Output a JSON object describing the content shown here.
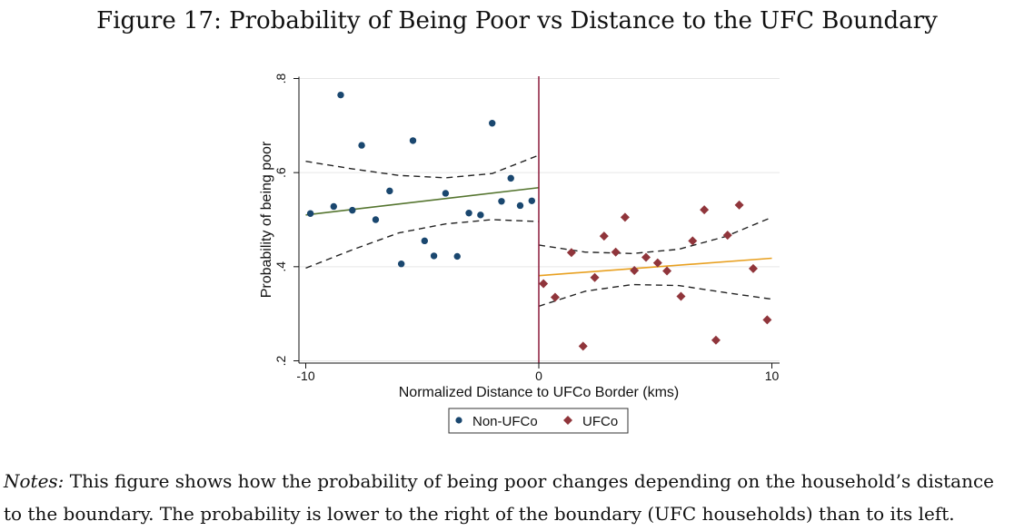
{
  "figure_title": "Figure 17: Probability of Being Poor vs Distance to the UFC Boundary",
  "notes": {
    "label": "Notes:",
    "line1": " This figure shows how the probability of being poor changes depending on the household’s distance",
    "line2": "to the boundary. The probability is lower to the right of the boundary (UFC households) than to its left."
  },
  "colors": {
    "non_ufco": "#1a476f",
    "ufco": "#90353b",
    "fit_left": "#55752f",
    "fit_right": "#e8a020",
    "boundary": "#8b1a3a",
    "ci": "#222222",
    "grid": "#e6e6e6"
  },
  "chart_data": {
    "type": "scatter",
    "xlabel": "Normalized Distance to UFCo Border (kms)",
    "ylabel": "Probability of being poor",
    "xlim": [
      -10.5,
      10.5
    ],
    "ylim": [
      0.19,
      0.82
    ],
    "xticks": [
      -10,
      0,
      10
    ],
    "xtick_labels": [
      "-10",
      "0",
      "10"
    ],
    "yticks": [
      0.2,
      0.4,
      0.6,
      0.8
    ],
    "ytick_labels": [
      ".2",
      ".4",
      ".6",
      ".8"
    ],
    "grid": true,
    "boundary_x": 0,
    "legend": {
      "position": "bottom-center",
      "entries": [
        "Non-UFCo",
        "UFCo"
      ]
    },
    "series": [
      {
        "name": "Non-UFCo",
        "marker": "circle",
        "x": [
          -9.8,
          -8.8,
          -8.5,
          -8.0,
          -7.6,
          -7.0,
          -6.4,
          -5.9,
          -5.4,
          -4.9,
          -4.5,
          -4.0,
          -3.5,
          -3.0,
          -2.5,
          -2.0,
          -1.6,
          -1.2,
          -0.8,
          -0.3
        ],
        "y": [
          0.513,
          0.528,
          0.765,
          0.52,
          0.658,
          0.5,
          0.561,
          0.406,
          0.668,
          0.455,
          0.423,
          0.556,
          0.422,
          0.514,
          0.51,
          0.705,
          0.539,
          0.588,
          0.53,
          0.54
        ]
      },
      {
        "name": "UFCo",
        "marker": "diamond",
        "x": [
          0.2,
          0.7,
          1.4,
          1.9,
          2.4,
          2.8,
          3.3,
          3.7,
          4.1,
          4.6,
          5.1,
          5.5,
          6.1,
          6.6,
          7.1,
          7.6,
          8.1,
          8.6,
          9.2,
          9.8
        ],
        "y": [
          0.364,
          0.335,
          0.43,
          0.231,
          0.377,
          0.465,
          0.431,
          0.505,
          0.392,
          0.42,
          0.408,
          0.391,
          0.337,
          0.455,
          0.521,
          0.244,
          0.467,
          0.531,
          0.396,
          0.287
        ]
      }
    ],
    "fit_lines": [
      {
        "name": "Non-UFCo fit",
        "x": [
          -10,
          0
        ],
        "y": [
          0.51,
          0.568
        ]
      },
      {
        "name": "UFCo fit",
        "x": [
          0,
          10
        ],
        "y": [
          0.381,
          0.418
        ]
      }
    ],
    "confidence_bands": [
      {
        "name": "Non-UFCo 95% CI",
        "x": [
          -10,
          -8,
          -6,
          -4,
          -2,
          0
        ],
        "upper": [
          0.624,
          0.608,
          0.594,
          0.589,
          0.598,
          0.637
        ],
        "lower": [
          0.397,
          0.436,
          0.472,
          0.491,
          0.5,
          0.496
        ]
      },
      {
        "name": "UFCo 95% CI",
        "x": [
          0,
          2,
          4,
          6,
          8,
          10
        ],
        "upper": [
          0.446,
          0.431,
          0.428,
          0.437,
          0.464,
          0.505
        ],
        "lower": [
          0.316,
          0.348,
          0.362,
          0.36,
          0.345,
          0.331
        ]
      }
    ]
  }
}
